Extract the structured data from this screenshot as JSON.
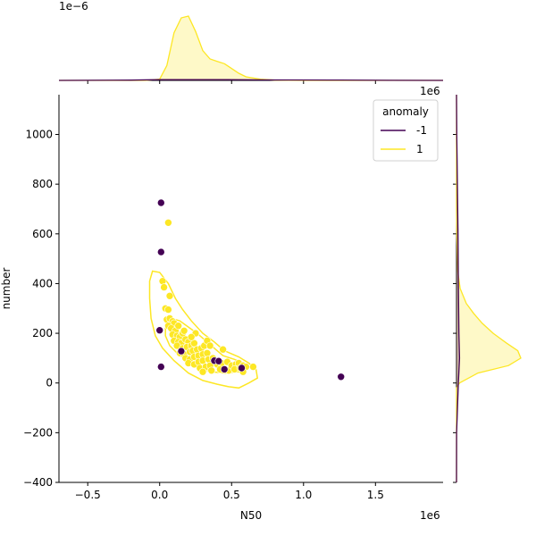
{
  "chart_data": {
    "type": "scatter",
    "title": "",
    "xlabel": "N50",
    "ylabel": "number",
    "x_offset_label": "1e6",
    "x_offset_label_top": "1e6",
    "marginal_top_offset_label": "1e−6",
    "xlim": [
      -0.7,
      1.97
    ],
    "ylim": [
      -400,
      1160
    ],
    "x_ticks": [
      -0.5,
      0.0,
      0.5,
      1.0,
      1.5
    ],
    "x_tick_labels": [
      "−0.5",
      "0.0",
      "0.5",
      "1.0",
      "1.5"
    ],
    "y_ticks": [
      -400,
      -200,
      0,
      200,
      400,
      600,
      800,
      1000
    ],
    "y_tick_labels": [
      "−400",
      "−200",
      "0",
      "200",
      "400",
      "600",
      "800",
      "1000"
    ],
    "grid": false,
    "legend": {
      "title": "anomaly",
      "placement": "top-right",
      "entries": [
        {
          "label": "-1",
          "color": "#440154"
        },
        {
          "label": "1",
          "color": "#fde725"
        }
      ]
    },
    "series": [
      {
        "name": "-1",
        "color": "#440154",
        "points": [
          [
            0.01,
            725
          ],
          [
            0.01,
            527
          ],
          [
            0.0,
            212
          ],
          [
            0.01,
            65
          ],
          [
            0.15,
            128
          ],
          [
            0.38,
            90
          ],
          [
            0.41,
            88
          ],
          [
            1.26,
            25
          ],
          [
            0.57,
            60
          ],
          [
            0.45,
            55
          ]
        ]
      },
      {
        "name": "1",
        "color": "#fde725",
        "points": [
          [
            0.06,
            645
          ],
          [
            0.02,
            410
          ],
          [
            0.03,
            385
          ],
          [
            0.07,
            350
          ],
          [
            0.04,
            300
          ],
          [
            0.06,
            295
          ],
          [
            0.05,
            255
          ],
          [
            0.07,
            260
          ],
          [
            0.09,
            248
          ],
          [
            0.1,
            240
          ],
          [
            0.06,
            230
          ],
          [
            0.08,
            220
          ],
          [
            0.11,
            210
          ],
          [
            0.13,
            230
          ],
          [
            0.09,
            195
          ],
          [
            0.12,
            190
          ],
          [
            0.14,
            185
          ],
          [
            0.16,
            200
          ],
          [
            0.1,
            170
          ],
          [
            0.13,
            165
          ],
          [
            0.15,
            160
          ],
          [
            0.18,
            175
          ],
          [
            0.2,
            165
          ],
          [
            0.12,
            150
          ],
          [
            0.16,
            140
          ],
          [
            0.19,
            145
          ],
          [
            0.22,
            150
          ],
          [
            0.24,
            160
          ],
          [
            0.14,
            120
          ],
          [
            0.17,
            115
          ],
          [
            0.21,
            125
          ],
          [
            0.23,
            130
          ],
          [
            0.26,
            135
          ],
          [
            0.29,
            140
          ],
          [
            0.31,
            150
          ],
          [
            0.18,
            100
          ],
          [
            0.21,
            95
          ],
          [
            0.24,
            105
          ],
          [
            0.27,
            110
          ],
          [
            0.3,
            115
          ],
          [
            0.33,
            120
          ],
          [
            0.2,
            80
          ],
          [
            0.24,
            75
          ],
          [
            0.27,
            85
          ],
          [
            0.3,
            90
          ],
          [
            0.34,
            95
          ],
          [
            0.37,
            100
          ],
          [
            0.44,
            135
          ],
          [
            0.28,
            60
          ],
          [
            0.32,
            65
          ],
          [
            0.35,
            70
          ],
          [
            0.4,
            75
          ],
          [
            0.43,
            80
          ],
          [
            0.47,
            85
          ],
          [
            0.3,
            45
          ],
          [
            0.36,
            50
          ],
          [
            0.42,
            55
          ],
          [
            0.48,
            50
          ],
          [
            0.5,
            70
          ],
          [
            0.53,
            75
          ],
          [
            0.55,
            80
          ],
          [
            0.58,
            70
          ],
          [
            0.6,
            65
          ],
          [
            0.52,
            55
          ],
          [
            0.56,
            60
          ],
          [
            0.58,
            45
          ],
          [
            0.65,
            65
          ],
          [
            0.25,
            200
          ],
          [
            0.22,
            185
          ],
          [
            0.17,
            210
          ],
          [
            0.33,
            170
          ],
          [
            0.35,
            150
          ]
        ]
      }
    ],
    "marginal_x": {
      "series": [
        {
          "name": "-1",
          "color": "#440154",
          "x": [
            -0.7,
            -0.2,
            0.0,
            0.4,
            0.8,
            1.2,
            1.6,
            1.97
          ],
          "density": [
            0.0,
            0.004,
            0.012,
            0.014,
            0.008,
            0.006,
            0.002,
            0.0
          ]
        },
        {
          "name": "1",
          "color": "#fde725",
          "x": [
            -0.7,
            -0.1,
            0.0,
            0.05,
            0.1,
            0.15,
            0.2,
            0.25,
            0.3,
            0.35,
            0.4,
            0.45,
            0.5,
            0.55,
            0.6,
            0.7,
            0.8,
            1.0,
            1.97
          ],
          "density": [
            0.0,
            0.0,
            0.02,
            0.25,
            0.8,
            1.05,
            1.08,
            0.82,
            0.5,
            0.36,
            0.32,
            0.28,
            0.2,
            0.12,
            0.06,
            0.02,
            0.005,
            0.0,
            0.0
          ]
        }
      ]
    },
    "marginal_y": {
      "series": [
        {
          "name": "-1",
          "color": "#440154",
          "y": [
            -400,
            -200,
            0,
            100,
            200,
            400,
            600,
            800,
            1000,
            1160
          ],
          "density": [
            0.0,
            0.002,
            0.03,
            0.05,
            0.04,
            0.03,
            0.025,
            0.015,
            0.004,
            0.0
          ]
        },
        {
          "name": "1",
          "color": "#fde725",
          "y": [
            -400,
            -20,
            0,
            40,
            70,
            100,
            130,
            160,
            200,
            240,
            280,
            320,
            380,
            450,
            600,
            700,
            1160
          ],
          "density": [
            0.0,
            0.0,
            0.05,
            0.35,
            0.85,
            1.05,
            1.0,
            0.82,
            0.6,
            0.42,
            0.28,
            0.16,
            0.06,
            0.02,
            0.005,
            0.0,
            0.0
          ]
        }
      ]
    },
    "contours": [
      {
        "name": "1",
        "color": "#fde725",
        "path": [
          [
            -0.05,
            450
          ],
          [
            0.0,
            445
          ],
          [
            0.06,
            400
          ],
          [
            0.11,
            340
          ],
          [
            0.16,
            295
          ],
          [
            0.22,
            250
          ],
          [
            0.3,
            200
          ],
          [
            0.38,
            165
          ],
          [
            0.45,
            130
          ],
          [
            0.55,
            105
          ],
          [
            0.62,
            80
          ],
          [
            0.67,
            55
          ],
          [
            0.68,
            20
          ],
          [
            0.62,
            0
          ],
          [
            0.55,
            -20
          ],
          [
            0.48,
            -15
          ],
          [
            0.4,
            -5
          ],
          [
            0.3,
            10
          ],
          [
            0.2,
            40
          ],
          [
            0.1,
            90
          ],
          [
            0.02,
            140
          ],
          [
            -0.03,
            190
          ],
          [
            -0.06,
            260
          ],
          [
            -0.07,
            340
          ],
          [
            -0.07,
            410
          ],
          [
            -0.05,
            450
          ]
        ]
      },
      {
        "name": "1",
        "color": "#fde725",
        "path": [
          [
            0.08,
            260
          ],
          [
            0.14,
            250
          ],
          [
            0.2,
            225
          ],
          [
            0.26,
            200
          ],
          [
            0.32,
            170
          ],
          [
            0.38,
            140
          ],
          [
            0.44,
            110
          ],
          [
            0.52,
            95
          ],
          [
            0.58,
            80
          ],
          [
            0.6,
            60
          ],
          [
            0.55,
            45
          ],
          [
            0.46,
            40
          ],
          [
            0.36,
            45
          ],
          [
            0.28,
            60
          ],
          [
            0.2,
            85
          ],
          [
            0.13,
            115
          ],
          [
            0.07,
            150
          ],
          [
            0.04,
            190
          ],
          [
            0.04,
            235
          ],
          [
            0.08,
            260
          ]
        ]
      }
    ]
  }
}
